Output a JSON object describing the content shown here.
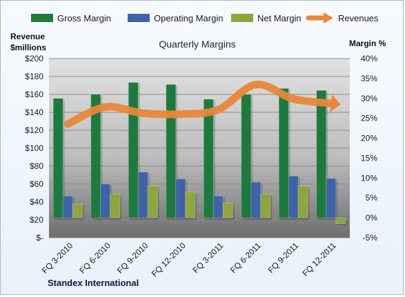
{
  "chart_data": {
    "type": "bar",
    "title": "Quarterly Margins",
    "footer": "Standex International",
    "categories": [
      "FQ 3-2010",
      "FQ 6-2010",
      "FQ 9-2010",
      "FQ 12-2010",
      "FQ 3-2011",
      "FQ 6-2011",
      "FQ 9-2011",
      "FQ 12-2011"
    ],
    "left_axis": {
      "label_line1": "Revenue",
      "label_line2": "$millions",
      "ylim": [
        0,
        200
      ],
      "ticks": [
        "$-",
        "$20",
        "$40",
        "$60",
        "$80",
        "$100",
        "$120",
        "$140",
        "$160",
        "$180",
        "$200"
      ]
    },
    "right_axis": {
      "label": "Margin %",
      "ylim": [
        -5,
        40
      ],
      "ticks": [
        "-5%",
        "0%",
        "5%",
        "10%",
        "15%",
        "20%",
        "25%",
        "30%",
        "35%",
        "40%"
      ]
    },
    "series": [
      {
        "name": "Gross Margin",
        "axis": "right",
        "type": "bar",
        "color": "#1f7a3c",
        "values": [
          30.0,
          31.0,
          34.0,
          33.5,
          29.8,
          31.0,
          32.5,
          32.0
        ]
      },
      {
        "name": "Operating Margin",
        "axis": "right",
        "type": "bar",
        "color": "#3f63a8",
        "values": [
          5.5,
          8.5,
          11.5,
          9.8,
          5.5,
          9.0,
          10.5,
          9.9
        ]
      },
      {
        "name": "Net Margin",
        "axis": "right",
        "type": "bar",
        "color": "#8ea63a",
        "values": [
          3.5,
          6.0,
          8.0,
          6.5,
          3.8,
          6.0,
          8.0,
          -1.5
        ]
      },
      {
        "name": "Revenues",
        "axis": "left",
        "type": "line",
        "color": "#e8873a",
        "values": [
          127,
          146,
          139,
          138,
          143,
          171,
          155,
          150
        ]
      }
    ],
    "grid": true,
    "legend_position": "top"
  }
}
